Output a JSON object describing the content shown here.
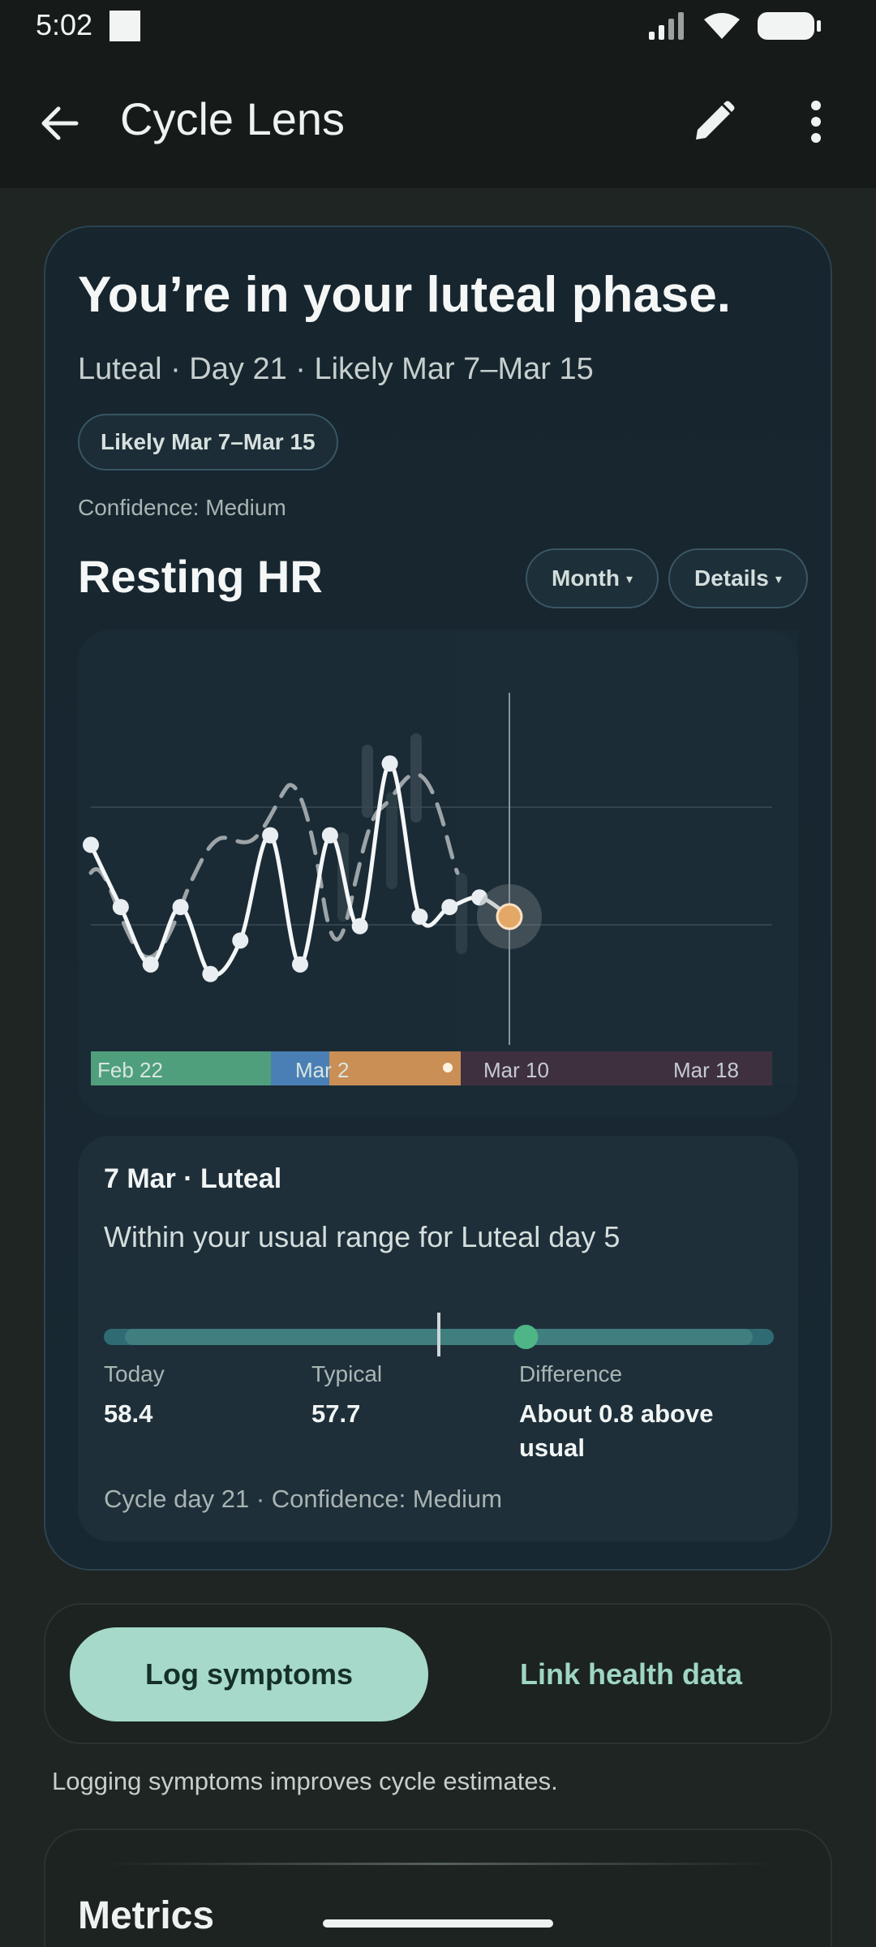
{
  "status_bar": {
    "time": "5:02"
  },
  "app_bar": {
    "title": "Cycle Lens"
  },
  "phase_card": {
    "headline": "You’re in your luteal phase.",
    "subline": "Luteal · Day 21 · Likely Mar 7–Mar 15",
    "likely_chip": "Likely Mar 7–Mar 15",
    "confidence": "Confidence: Medium"
  },
  "metric_section": {
    "title": "Resting HR",
    "period_pill": "Month",
    "details_pill": "Details",
    "caret": "▾"
  },
  "chart_data": {
    "type": "line",
    "series": [
      {
        "values": [
          62.3,
          61.0,
          59.8,
          61.0,
          59.6,
          60.3,
          62.5,
          59.8,
          62.5,
          60.6,
          64.0,
          60.8,
          61.0,
          61.2,
          60.8
        ]
      }
    ],
    "x_tick_labels": [
      "Feb 22",
      "Mar 2",
      "Mar 10",
      "Mar 18"
    ],
    "phase_bands": [
      {
        "phase": "Menstrual",
        "color": "#4f9f7d"
      },
      {
        "phase": "Follicular",
        "color": "#4a7fb5"
      },
      {
        "phase": "Ovulation/Luteal",
        "color": "#c98f55"
      },
      {
        "phase": "Predicted",
        "color": "#3f3040"
      }
    ],
    "highlight_point": {
      "value": 60.8,
      "color": "#e3a766"
    }
  },
  "detail": {
    "date_phase": "7 Mar · Luteal",
    "status": "Within your usual range for Luteal day 5",
    "range_position": 0.63,
    "typical_position": 0.5,
    "today_label": "Today",
    "today_value": "58.4",
    "typical_label": "Typical",
    "typical_value": "57.7",
    "difference_label": "Difference",
    "difference_value": "About 0.8 above usual",
    "footer": "Cycle day 21 · Confidence: Medium"
  },
  "actions": {
    "log_symptoms": "Log symptoms",
    "link_health": "Link health data",
    "helper": "Logging symptoms improves cycle estimates."
  },
  "metrics": {
    "title": "Metrics"
  },
  "colors": {
    "accent": "#a6d9c9",
    "accent_text": "#9fd6c3",
    "card_border": "#2c4350"
  }
}
